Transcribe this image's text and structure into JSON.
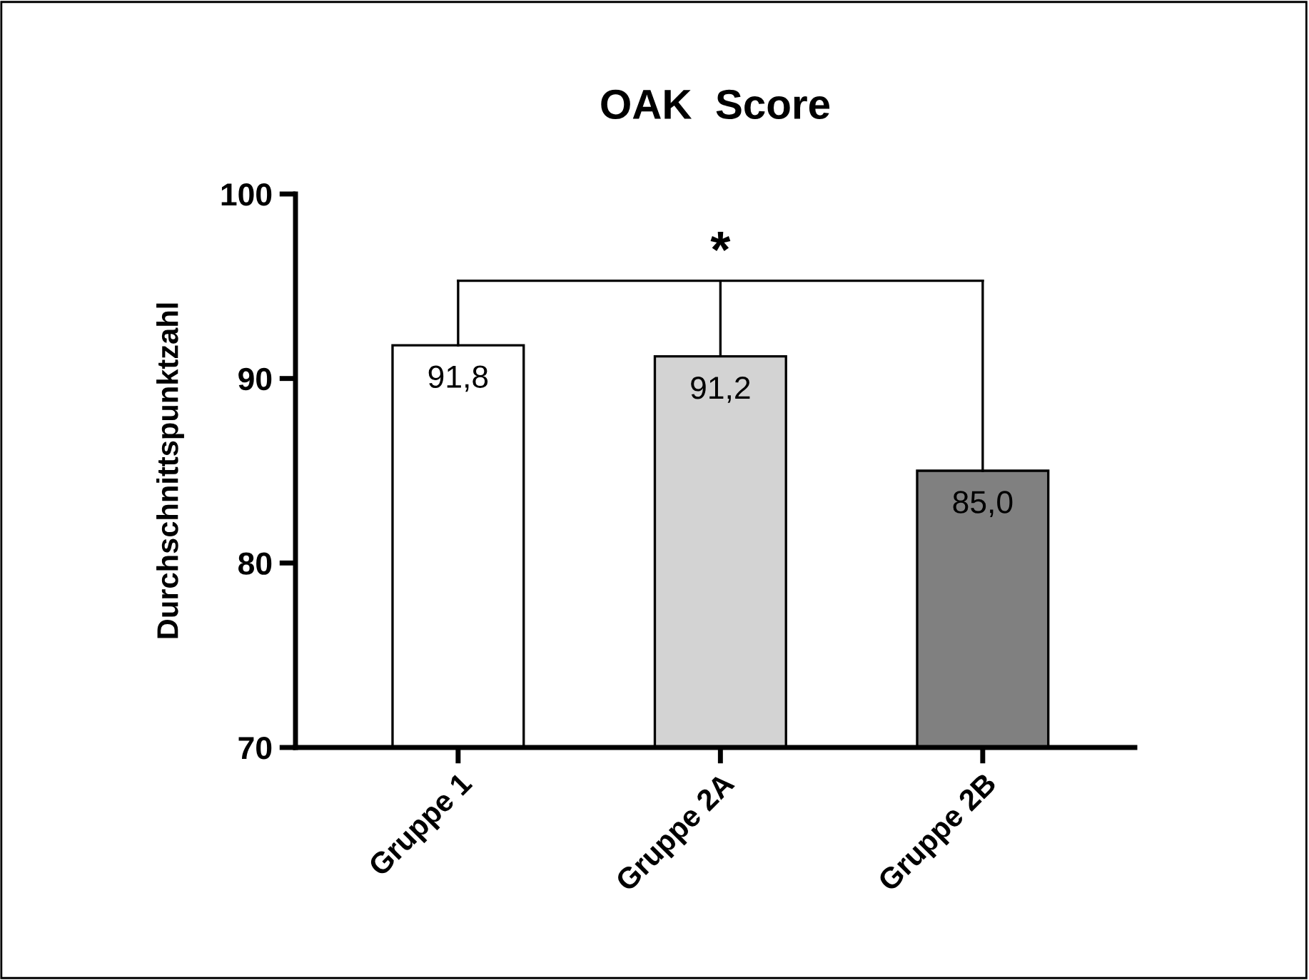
{
  "chart_data": {
    "type": "bar",
    "title": "OAK  Score",
    "ylabel": "Durchschnittspunktzahl",
    "categories": [
      "Gruppe 1",
      "Gruppe 2A",
      "Gruppe 2B"
    ],
    "values": [
      91.8,
      91.2,
      85.0
    ],
    "colors": [
      "#ffffff",
      "#d3d3d3",
      "#808080"
    ],
    "value_labels": [
      "91,8",
      "91,2",
      "85,0"
    ],
    "ylim": [
      70,
      100
    ],
    "yticks": [
      70,
      80,
      90,
      100
    ],
    "errors": [
      null,
      [
        91.2,
        95.3
      ],
      null
    ],
    "annotations": [
      "*"
    ],
    "grid": false,
    "legend": false
  }
}
